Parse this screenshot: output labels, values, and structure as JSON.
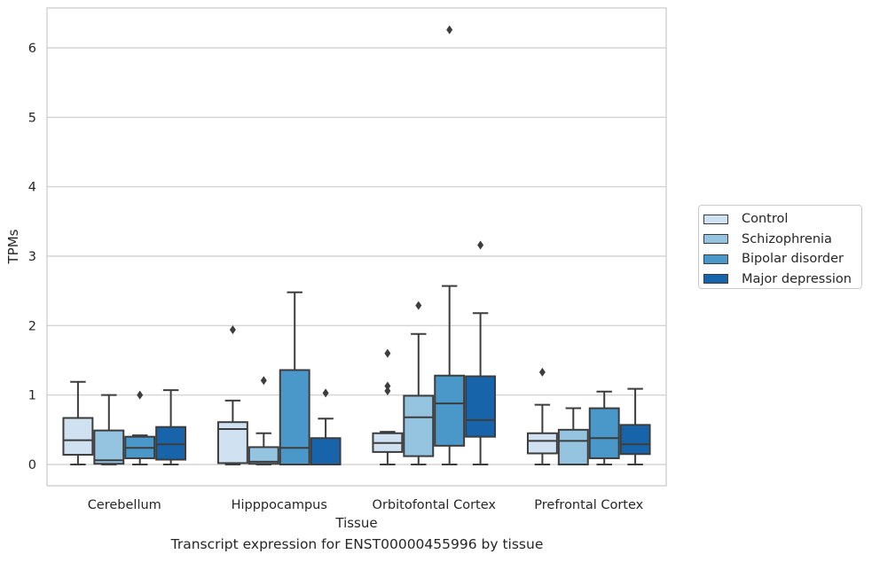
{
  "chart_data": {
    "type": "box",
    "caption": "Transcript expression for ENST00000455996 by tissue",
    "xlabel": "Tissue",
    "ylabel": "TPMs",
    "ylim": [
      -0.3,
      6.6
    ],
    "yticks": [
      0,
      1,
      2,
      3,
      4,
      5,
      6
    ],
    "grid": "horizontal",
    "legend_position": "right",
    "categories": [
      "Cerebellum",
      "Hipppocampus",
      "Orbitofontal Cortex",
      "Prefrontal Cortex"
    ],
    "series": [
      {
        "name": "Control",
        "color": "#d0e1f2",
        "boxes": [
          {
            "whislo": 0.0,
            "q1": 0.14,
            "med": 0.35,
            "q3": 0.67,
            "whishi": 1.19,
            "fliers": []
          },
          {
            "whislo": 0.0,
            "q1": 0.02,
            "med": 0.51,
            "q3": 0.61,
            "whishi": 0.92,
            "fliers": [
              1.94
            ]
          },
          {
            "whislo": 0.0,
            "q1": 0.18,
            "med": 0.31,
            "q3": 0.45,
            "whishi": 0.47,
            "fliers": [
              1.06,
              1.13,
              1.6
            ]
          },
          {
            "whislo": 0.0,
            "q1": 0.16,
            "med": 0.34,
            "q3": 0.45,
            "whishi": 0.86,
            "fliers": [
              1.33
            ]
          }
        ]
      },
      {
        "name": "Schizophrenia",
        "color": "#94c4df",
        "boxes": [
          {
            "whislo": 0.0,
            "q1": 0.01,
            "med": 0.06,
            "q3": 0.49,
            "whishi": 1.0,
            "fliers": []
          },
          {
            "whislo": 0.0,
            "q1": 0.01,
            "med": 0.04,
            "q3": 0.25,
            "whishi": 0.45,
            "fliers": [
              1.21
            ]
          },
          {
            "whislo": 0.0,
            "q1": 0.12,
            "med": 0.68,
            "q3": 0.99,
            "whishi": 1.88,
            "fliers": [
              2.29
            ]
          },
          {
            "whislo": 0.0,
            "q1": 0.0,
            "med": 0.34,
            "q3": 0.5,
            "whishi": 0.81,
            "fliers": []
          }
        ]
      },
      {
        "name": "Bipolar disorder",
        "color": "#4a98c9",
        "boxes": [
          {
            "whislo": 0.0,
            "q1": 0.09,
            "med": 0.24,
            "q3": 0.4,
            "whishi": 0.42,
            "fliers": [
              1.0
            ]
          },
          {
            "whislo": 0.0,
            "q1": 0.0,
            "med": 0.24,
            "q3": 1.36,
            "whishi": 2.48,
            "fliers": []
          },
          {
            "whislo": 0.0,
            "q1": 0.27,
            "med": 0.88,
            "q3": 1.28,
            "whishi": 2.57,
            "fliers": [
              6.26
            ]
          },
          {
            "whislo": 0.0,
            "q1": 0.09,
            "med": 0.38,
            "q3": 0.81,
            "whishi": 1.05,
            "fliers": []
          }
        ]
      },
      {
        "name": "Major depression",
        "color": "#1764ab",
        "boxes": [
          {
            "whislo": 0.0,
            "q1": 0.07,
            "med": 0.29,
            "q3": 0.54,
            "whishi": 1.07,
            "fliers": []
          },
          {
            "whislo": 0.0,
            "q1": 0.0,
            "med": 0.0,
            "q3": 0.38,
            "whishi": 0.66,
            "fliers": [
              1.03
            ]
          },
          {
            "whislo": 0.0,
            "q1": 0.4,
            "med": 0.64,
            "q3": 1.27,
            "whishi": 2.18,
            "fliers": [
              3.16
            ]
          },
          {
            "whislo": 0.0,
            "q1": 0.15,
            "med": 0.29,
            "q3": 0.57,
            "whishi": 1.09,
            "fliers": []
          }
        ]
      }
    ]
  }
}
